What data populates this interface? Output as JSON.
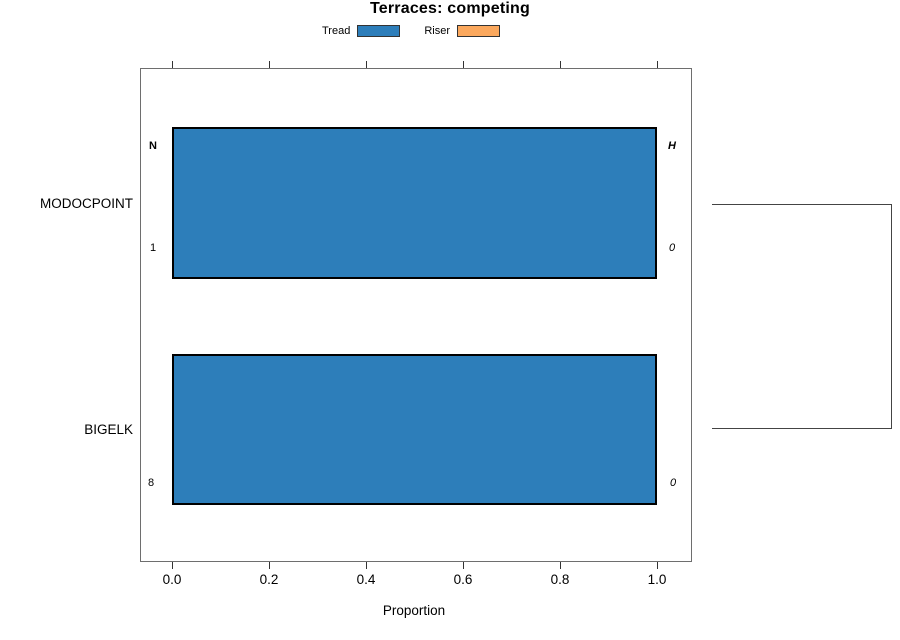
{
  "chart_data": {
    "type": "bar",
    "orientation": "horizontal",
    "title": "Terraces: competing",
    "categories": [
      "MODOCPOINT",
      "BIGELK"
    ],
    "series": [
      {
        "name": "Tread",
        "color": "#2d7eba",
        "values": [
          1.0,
          1.0
        ]
      },
      {
        "name": "Riser",
        "color": "#fba85d",
        "values": [
          0.0,
          0.0
        ]
      }
    ],
    "xlabel": "Proportion",
    "xlim": [
      0,
      1
    ],
    "x_ticks": [
      0.0,
      0.2,
      0.4,
      0.6,
      0.8,
      1.0
    ],
    "x_tick_labels": [
      "0.0",
      "0.2",
      "0.4",
      "0.6",
      "0.8",
      "1.0"
    ],
    "annotations": {
      "left_column_header": "N",
      "right_column_header": "H",
      "left_counts": [
        "1",
        "8"
      ],
      "right_counts": [
        "0",
        "0"
      ]
    },
    "legend_position": "top",
    "grid": false,
    "bracket_joins_categories": [
      "MODOCPOINT",
      "BIGELK"
    ]
  }
}
